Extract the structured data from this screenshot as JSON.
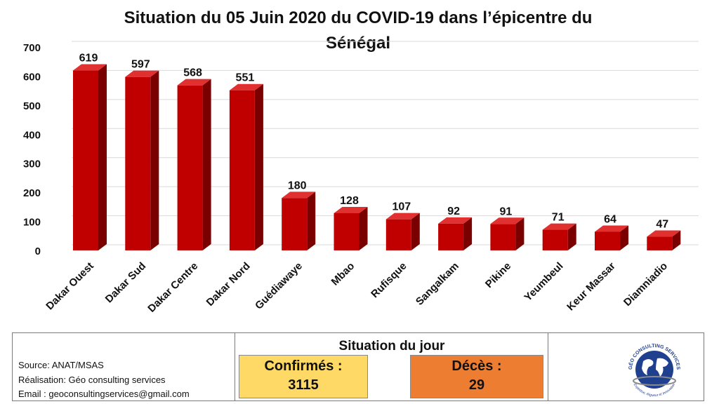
{
  "chart_data": {
    "type": "bar",
    "title": "Situation du 05 Juin 2020 du COVID-19 dans l’épicentre du Sénégal",
    "title_lines": [
      "Situation du 05 Juin 2020 du COVID-19 dans l’épicentre du",
      "Sénégal"
    ],
    "categories": [
      "Dakar Ouest",
      "Dakar Sud",
      "Dakar Centre",
      "Dakar Nord",
      "Guédiawaye",
      "Mbao",
      "Rufisque",
      "Sangalkam",
      "Pikine",
      "Yeumbeul",
      "Keur Massar",
      "Diamniadio"
    ],
    "values": [
      619,
      597,
      568,
      551,
      180,
      128,
      107,
      92,
      91,
      71,
      64,
      47
    ],
    "ylim": [
      0,
      700
    ],
    "yticks": [
      0,
      100,
      200,
      300,
      400,
      500,
      600,
      700
    ],
    "grid": true,
    "legend": "none",
    "bar_style": "3d",
    "colors": {
      "bar_front": "#c00000",
      "bar_side": "#7a0000",
      "bar_top": "#e03030",
      "grid": "#d9d9d9"
    }
  },
  "footer": {
    "source": "Source: ANAT/MSAS",
    "realisation": "Réalisation: Géo consulting services",
    "email": "Email : geoconsultingservices@gmail.com",
    "situation_title": "Situation du jour",
    "confirmed_label": "Confirmés :",
    "confirmed_value": "3115",
    "deaths_label": "Décès :",
    "deaths_value": "29",
    "logo_text": "GÉO CONSULTING SERVICES",
    "logo_tagline": "Expertise, Rigueur et Innovation"
  }
}
